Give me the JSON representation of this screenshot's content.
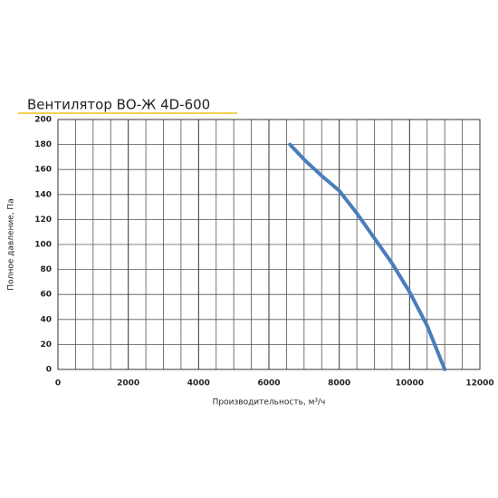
{
  "chart_data": {
    "type": "line",
    "title": "Вентилятор ВО-Ж 4D-600",
    "x_label": "Производительность, м³/ч",
    "y_label": "Полное давление, Па",
    "series": [
      {
        "name": "ВО-Ж 4D-600",
        "color": "#4a7ebb",
        "x": [
          6600,
          7000,
          7500,
          8000,
          8500,
          9000,
          9500,
          10000,
          10500,
          11000
        ],
        "values": [
          180,
          168,
          155,
          143,
          125,
          105,
          85,
          62,
          35,
          0
        ]
      }
    ],
    "xlim": [
      0,
      12000
    ],
    "xticks": [
      0,
      2000,
      4000,
      6000,
      8000,
      10000,
      12000
    ],
    "xgrid": [
      500,
      1000,
      1500,
      2500,
      3000,
      3500,
      4500,
      5000,
      5500,
      6500,
      7000,
      7500,
      8500,
      9000,
      9500,
      10500,
      11000,
      11500
    ],
    "ylim": [
      0,
      200
    ],
    "yticks": [
      0,
      20,
      40,
      60,
      80,
      100,
      120,
      140,
      160,
      180,
      200
    ],
    "grid": true
  }
}
